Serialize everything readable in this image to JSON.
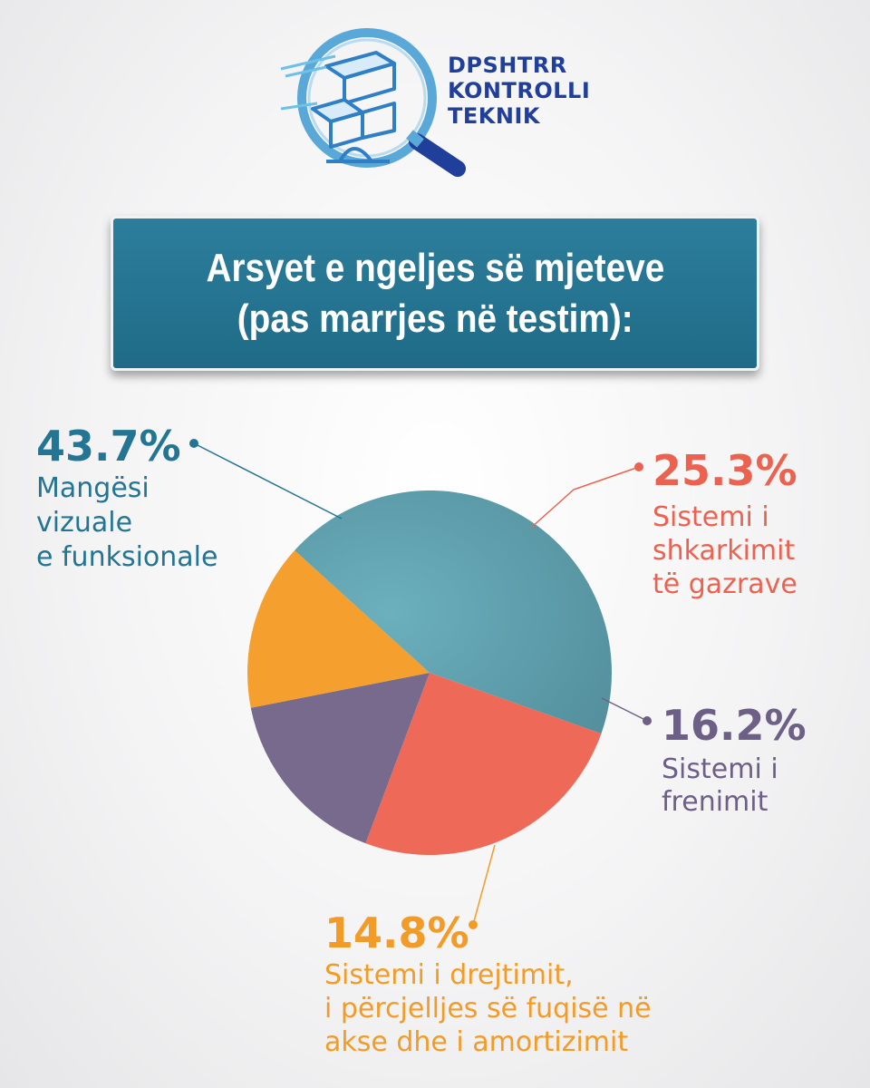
{
  "logo": {
    "icon": "magnifier-blocks-icon",
    "lines": [
      "DPSHTRR",
      "KONTROLLI",
      "TEKNIK"
    ],
    "color": "#1f3f9a"
  },
  "title": {
    "line1": "Arsyet e ngeljes së mjeteve",
    "line2": "(pas marrjes në testim):",
    "background": "#23728f"
  },
  "chart_data": {
    "type": "pie",
    "title": "Arsyet e ngeljes së mjeteve (pas marrjes në testim):",
    "slices": [
      {
        "value": 43.7,
        "percent_label": "43.7%",
        "label_lines": [
          "Mangësi",
          "vizuale",
          "e funksionale"
        ],
        "color": "#63a3b0",
        "text_color": "#247593"
      },
      {
        "value": 25.3,
        "percent_label": "25.3%",
        "label_lines": [
          "Sistemi i",
          "shkarkimit",
          "të gazrave"
        ],
        "color": "#ee6957",
        "text_color": "#ec6250"
      },
      {
        "value": 16.2,
        "percent_label": "16.2%",
        "label_lines": [
          "Sistemi i",
          "frenimit"
        ],
        "color": "#786a8c",
        "text_color": "#6e5f86"
      },
      {
        "value": 14.8,
        "percent_label": "14.8%",
        "label_lines": [
          "Sistemi i drejtimit,",
          "i përcjelljes së fuqisë në",
          "akse dhe i amortizimit"
        ],
        "color": "#f49f2e",
        "text_color": "#f39b27"
      }
    ]
  }
}
